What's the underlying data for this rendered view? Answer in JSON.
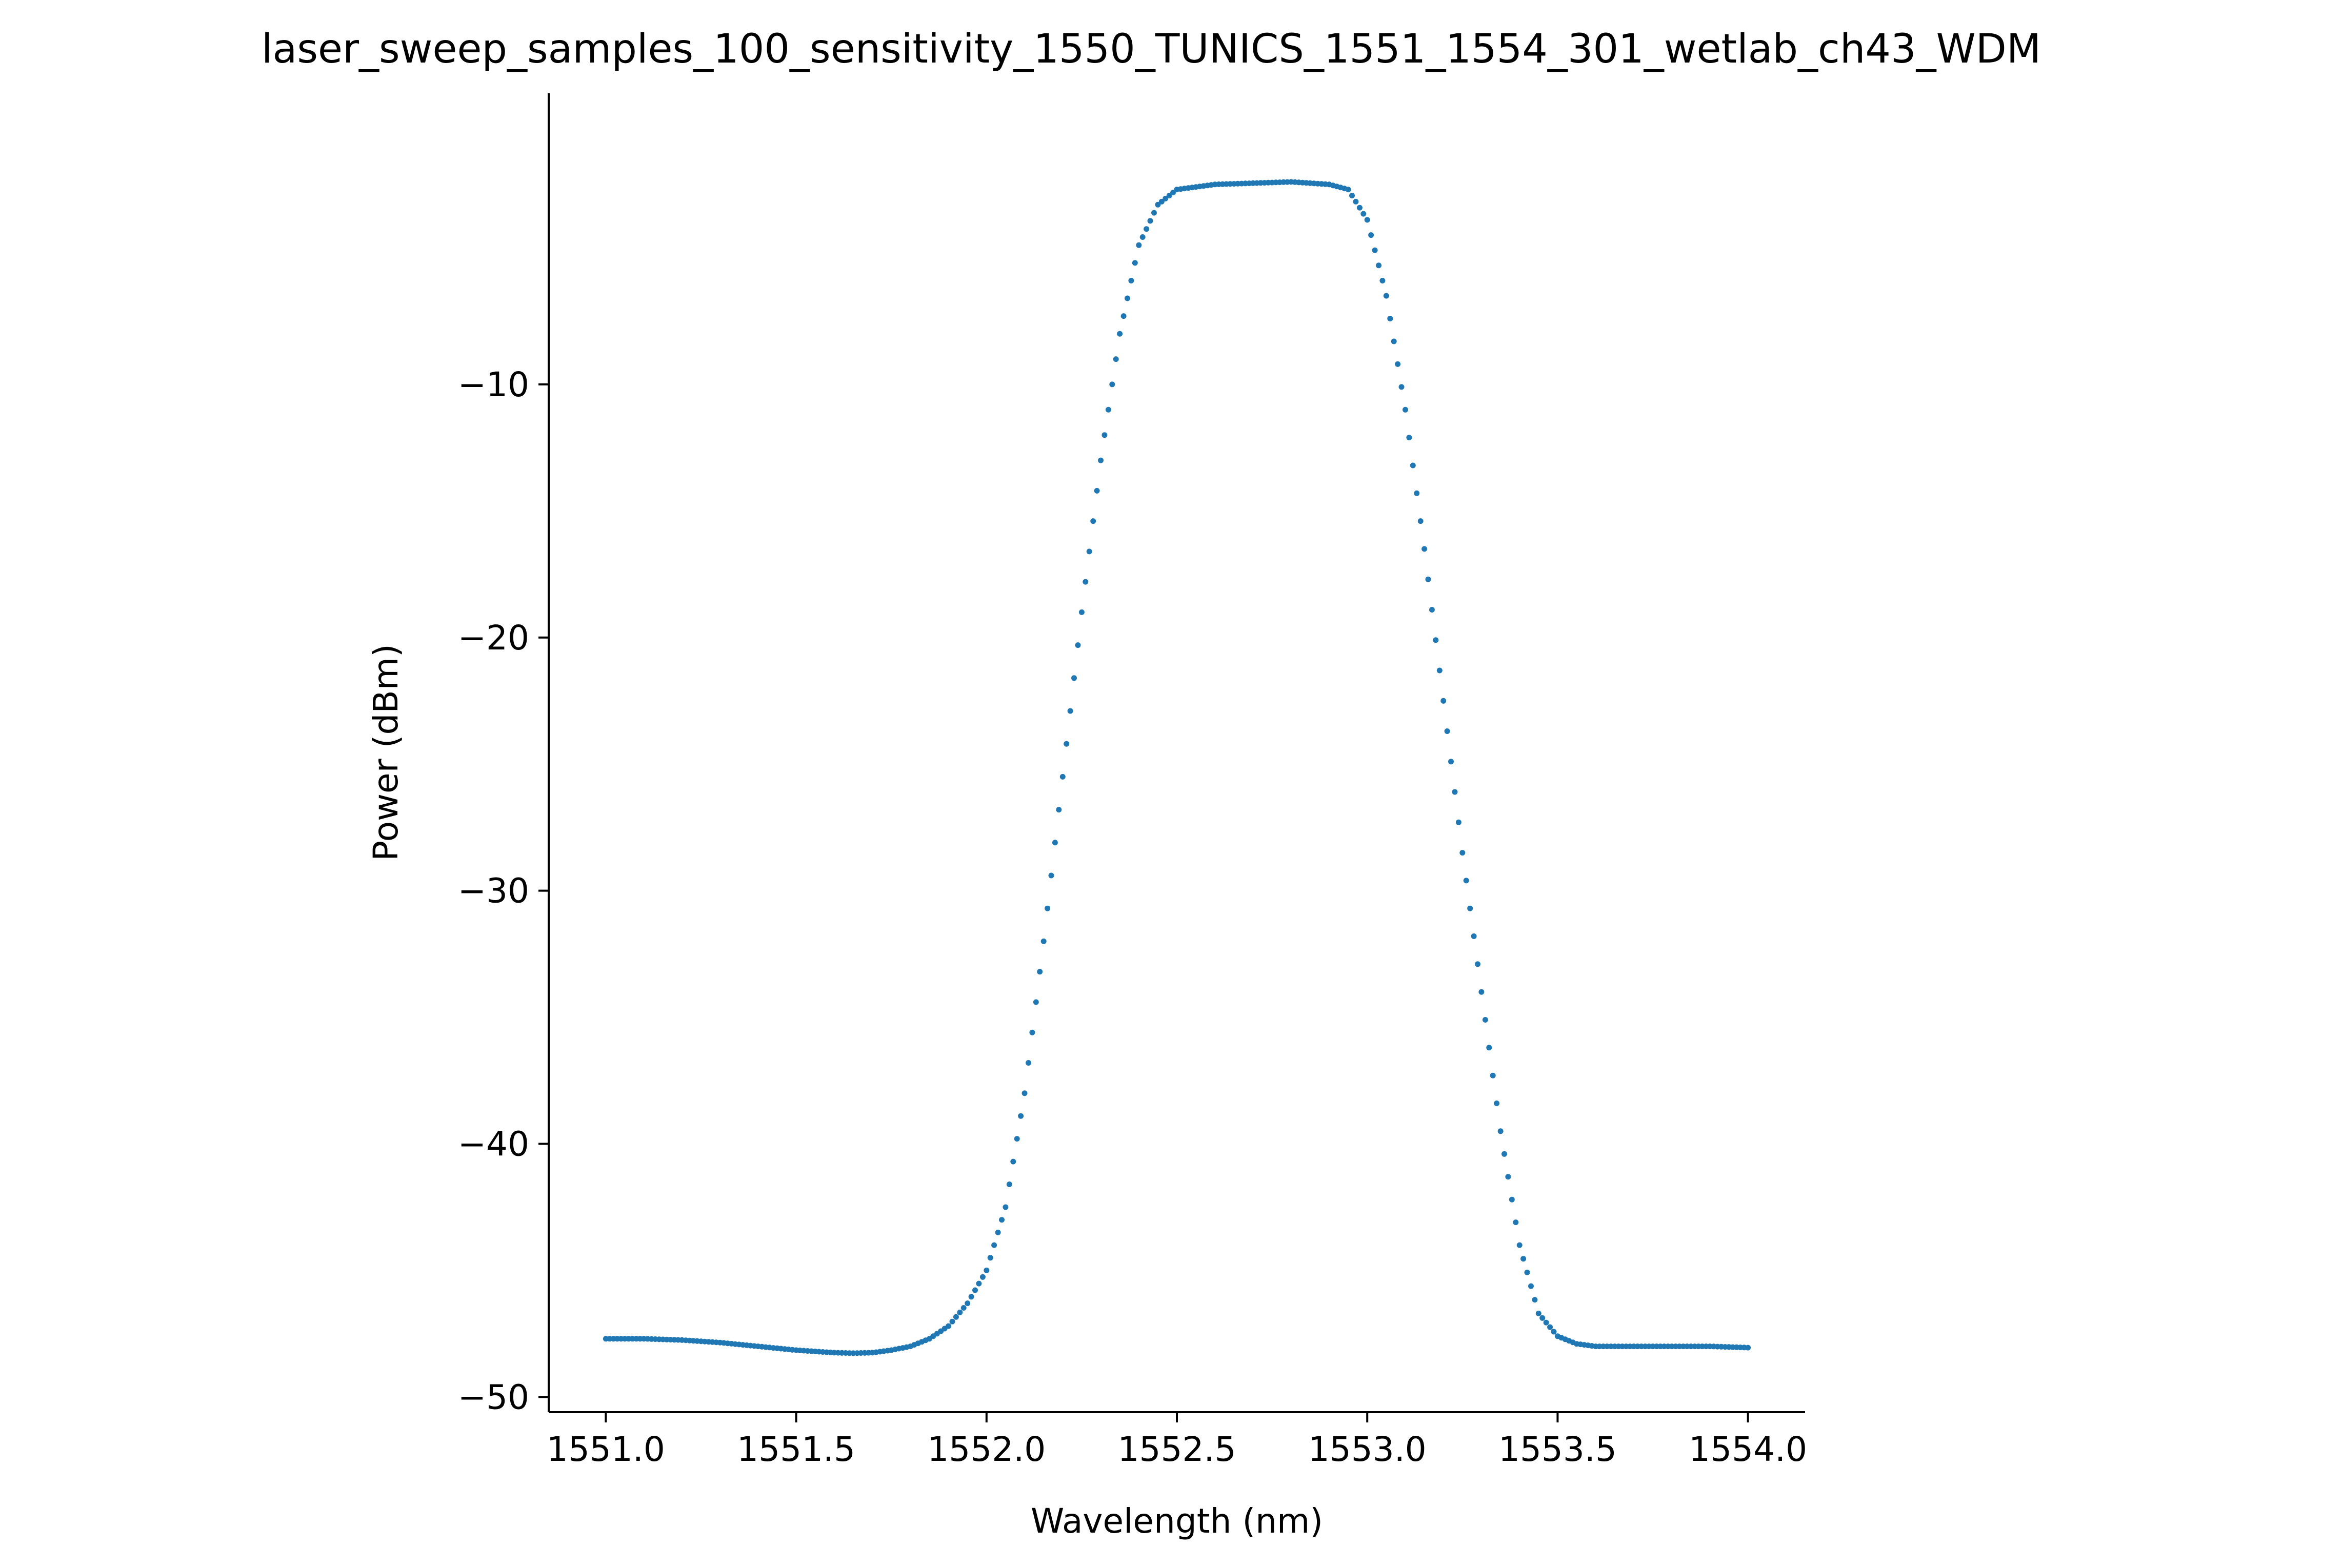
{
  "chart_data": {
    "type": "scatter",
    "title": "laser_sweep_samples_100_sensitivity_1550_TUNICS_1551_1554_301_wetlab_ch43_WDM",
    "xlabel": "Wavelength (nm)",
    "ylabel": "Power (dBm)",
    "xlim": [
      1550.85,
      1554.15
    ],
    "ylim": [
      -50.6,
      1.5
    ],
    "xticks": [
      1551.0,
      1551.5,
      1552.0,
      1552.5,
      1553.0,
      1553.5,
      1554.0
    ],
    "xtick_labels": [
      "1551.0",
      "1551.5",
      "1552.0",
      "1552.5",
      "1553.0",
      "1553.5",
      "1554.0"
    ],
    "yticks": [
      -50,
      -40,
      -30,
      -20,
      -10
    ],
    "ytick_labels": [
      "−50",
      "−40",
      "−30",
      "−20",
      "−10"
    ],
    "grid": false,
    "spines": [
      "left",
      "bottom"
    ],
    "marker_color": "#1f77b4",
    "x_range": [
      1551.0,
      1554.0
    ],
    "n_points": 301,
    "profile": [
      [
        1551.0,
        -47.7
      ],
      [
        1551.1,
        -47.7
      ],
      [
        1551.2,
        -47.75
      ],
      [
        1551.3,
        -47.85
      ],
      [
        1551.4,
        -48.0
      ],
      [
        1551.5,
        -48.15
      ],
      [
        1551.6,
        -48.25
      ],
      [
        1551.65,
        -48.27
      ],
      [
        1551.7,
        -48.25
      ],
      [
        1551.75,
        -48.15
      ],
      [
        1551.8,
        -48.0
      ],
      [
        1551.85,
        -47.7
      ],
      [
        1551.9,
        -47.2
      ],
      [
        1551.95,
        -46.3
      ],
      [
        1552.0,
        -45.0
      ],
      [
        1552.05,
        -42.5
      ],
      [
        1552.1,
        -38.0
      ],
      [
        1552.15,
        -32.0
      ],
      [
        1552.2,
        -25.5
      ],
      [
        1552.25,
        -19.0
      ],
      [
        1552.3,
        -13.0
      ],
      [
        1552.35,
        -8.0
      ],
      [
        1552.4,
        -4.5
      ],
      [
        1552.45,
        -2.9
      ],
      [
        1552.5,
        -2.3
      ],
      [
        1552.6,
        -2.1
      ],
      [
        1552.7,
        -2.05
      ],
      [
        1552.8,
        -2.0
      ],
      [
        1552.9,
        -2.1
      ],
      [
        1552.95,
        -2.3
      ],
      [
        1553.0,
        -3.5
      ],
      [
        1553.05,
        -6.5
      ],
      [
        1553.1,
        -11.0
      ],
      [
        1553.15,
        -16.5
      ],
      [
        1553.2,
        -22.5
      ],
      [
        1553.25,
        -28.5
      ],
      [
        1553.3,
        -34.0
      ],
      [
        1553.35,
        -39.5
      ],
      [
        1553.4,
        -44.0
      ],
      [
        1553.45,
        -46.7
      ],
      [
        1553.5,
        -47.6
      ],
      [
        1553.55,
        -47.9
      ],
      [
        1553.6,
        -48.0
      ],
      [
        1553.7,
        -48.0
      ],
      [
        1553.8,
        -48.0
      ],
      [
        1553.9,
        -48.0
      ],
      [
        1554.0,
        -48.05
      ]
    ]
  }
}
